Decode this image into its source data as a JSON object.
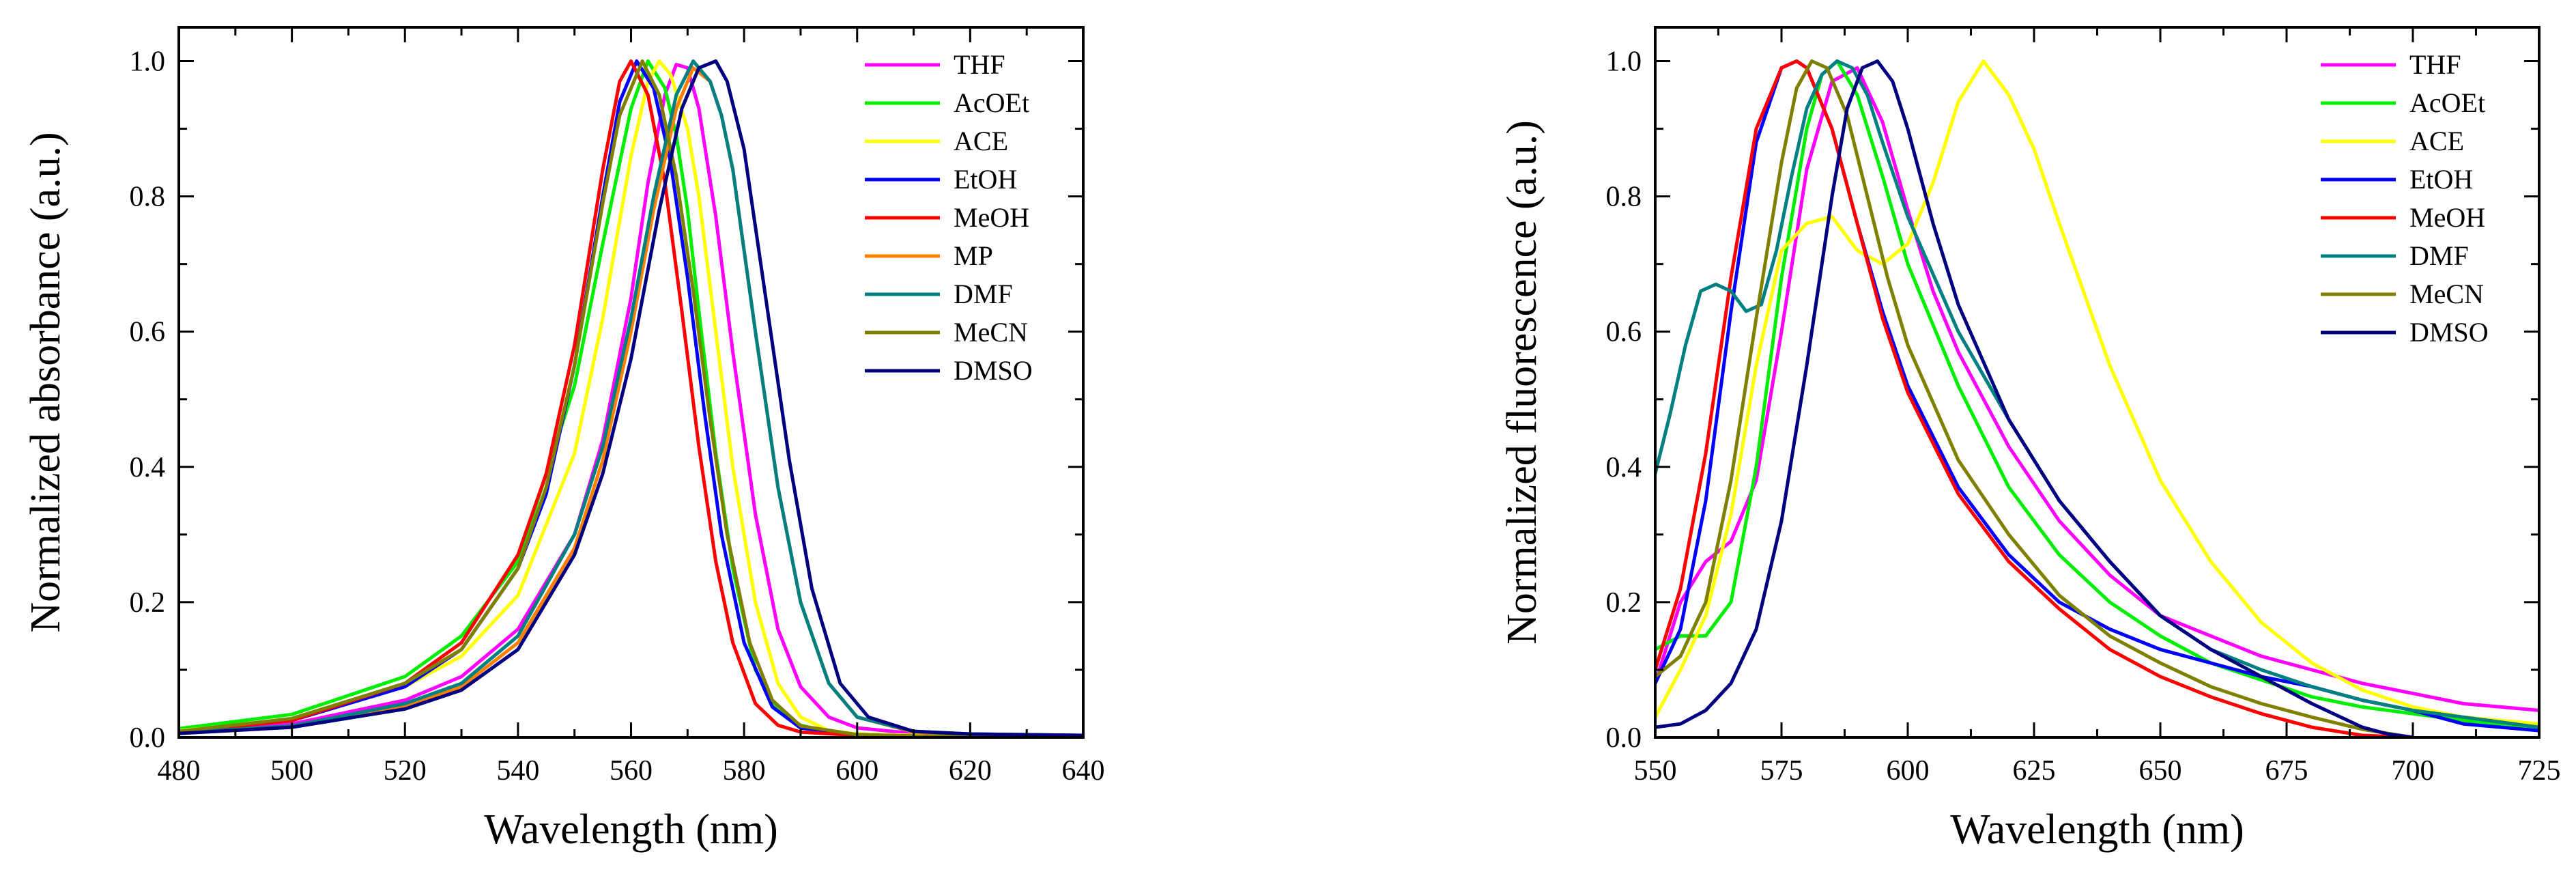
{
  "chart_data": [
    {
      "type": "line",
      "title": "",
      "xlabel": "Wavelength (nm)",
      "ylabel": "Normalized absorbance (a.u.)",
      "xlim": [
        480,
        640
      ],
      "ylim": [
        0,
        1.05
      ],
      "xticks": [
        480,
        500,
        520,
        540,
        560,
        580,
        600,
        620,
        640
      ],
      "yticks": [
        0.0,
        0.2,
        0.4,
        0.6,
        0.8,
        1.0
      ],
      "xtick_labels": [
        "480",
        "500",
        "520",
        "540",
        "560",
        "580",
        "600",
        "620",
        "640"
      ],
      "ytick_labels": [
        "0.0",
        "0.2",
        "0.4",
        "0.6",
        "0.8",
        "1.0"
      ],
      "grid": false,
      "legend_position": "top-right",
      "series": [
        {
          "name": "THF",
          "color": "#ff00ff",
          "x": [
            480,
            500,
            520,
            530,
            540,
            550,
            555,
            560,
            563,
            566,
            568,
            570,
            572,
            575,
            578,
            582,
            586,
            590,
            595,
            600,
            610,
            620,
            640
          ],
          "y": [
            0.007,
            0.02,
            0.055,
            0.09,
            0.16,
            0.3,
            0.44,
            0.65,
            0.82,
            0.95,
            0.995,
            0.99,
            0.93,
            0.77,
            0.57,
            0.33,
            0.16,
            0.075,
            0.03,
            0.014,
            0.006,
            0.004,
            0.003
          ]
        },
        {
          "name": "AcOEt",
          "color": "#00ee00",
          "x": [
            480,
            500,
            520,
            530,
            540,
            550,
            555,
            560,
            563,
            566,
            568,
            570,
            572,
            575,
            578,
            582,
            586,
            590,
            595,
            600,
            610,
            620,
            640
          ],
          "y": [
            0.013,
            0.034,
            0.09,
            0.15,
            0.26,
            0.52,
            0.73,
            0.93,
            1.0,
            0.96,
            0.89,
            0.78,
            0.63,
            0.42,
            0.25,
            0.1,
            0.04,
            0.018,
            0.008,
            0.005,
            0.003,
            0.002,
            0.002
          ]
        },
        {
          "name": "ACE",
          "color": "#ffff00",
          "x": [
            480,
            500,
            520,
            530,
            540,
            550,
            555,
            560,
            563,
            565,
            567,
            570,
            572,
            575,
            578,
            582,
            586,
            590,
            595,
            600,
            610,
            620,
            640
          ],
          "y": [
            0.01,
            0.025,
            0.075,
            0.12,
            0.21,
            0.42,
            0.62,
            0.86,
            0.97,
            1.0,
            0.98,
            0.9,
            0.8,
            0.6,
            0.4,
            0.2,
            0.08,
            0.03,
            0.01,
            0.005,
            0.003,
            0.002,
            0.002
          ]
        },
        {
          "name": "EtOH",
          "color": "#0000ff",
          "x": [
            480,
            500,
            520,
            530,
            540,
            545,
            550,
            555,
            558,
            561,
            564,
            567,
            570,
            573,
            576,
            580,
            585,
            590,
            600,
            610,
            620,
            640
          ],
          "y": [
            0.008,
            0.025,
            0.075,
            0.13,
            0.25,
            0.36,
            0.55,
            0.8,
            0.94,
            1.0,
            0.96,
            0.85,
            0.68,
            0.48,
            0.3,
            0.14,
            0.045,
            0.014,
            0.004,
            0.002,
            0.002,
            0.002
          ]
        },
        {
          "name": "MeOH",
          "color": "#ff0000",
          "x": [
            480,
            500,
            520,
            530,
            540,
            545,
            550,
            555,
            558,
            560,
            563,
            566,
            569,
            572,
            575,
            578,
            582,
            586,
            590,
            600,
            610,
            640
          ],
          "y": [
            0.008,
            0.025,
            0.08,
            0.14,
            0.27,
            0.39,
            0.58,
            0.84,
            0.97,
            1.0,
            0.95,
            0.82,
            0.63,
            0.43,
            0.26,
            0.14,
            0.05,
            0.018,
            0.008,
            0.003,
            0.002,
            0.002
          ]
        },
        {
          "name": "MP",
          "color": "#ff8000",
          "x": [
            480,
            500,
            520,
            530,
            540,
            550,
            555,
            560,
            564,
            568,
            571,
            574,
            576,
            578,
            582,
            586,
            590,
            595,
            600,
            610,
            620,
            640
          ],
          "y": [
            0.006,
            0.015,
            0.045,
            0.075,
            0.14,
            0.28,
            0.41,
            0.6,
            0.78,
            0.93,
            0.99,
            0.97,
            0.92,
            0.84,
            0.6,
            0.37,
            0.2,
            0.08,
            0.03,
            0.008,
            0.004,
            0.003
          ]
        },
        {
          "name": "DMF",
          "color": "#008080",
          "x": [
            480,
            500,
            520,
            530,
            540,
            550,
            555,
            560,
            564,
            568,
            571,
            574,
            576,
            578,
            582,
            586,
            590,
            595,
            600,
            610,
            620,
            640
          ],
          "y": [
            0.007,
            0.017,
            0.05,
            0.08,
            0.15,
            0.3,
            0.43,
            0.62,
            0.8,
            0.95,
            1.0,
            0.97,
            0.92,
            0.84,
            0.6,
            0.37,
            0.2,
            0.08,
            0.03,
            0.009,
            0.005,
            0.003
          ]
        },
        {
          "name": "MeCN",
          "color": "#808000",
          "x": [
            480,
            500,
            520,
            530,
            540,
            545,
            550,
            555,
            558,
            562,
            565,
            568,
            571,
            574,
            577,
            581,
            585,
            590,
            600,
            610,
            620,
            640
          ],
          "y": [
            0.009,
            0.028,
            0.08,
            0.13,
            0.25,
            0.37,
            0.55,
            0.79,
            0.92,
            1.0,
            0.95,
            0.83,
            0.66,
            0.47,
            0.3,
            0.14,
            0.055,
            0.017,
            0.004,
            0.002,
            0.002,
            0.002
          ]
        },
        {
          "name": "DMSO",
          "color": "#000080",
          "x": [
            480,
            500,
            520,
            530,
            540,
            550,
            555,
            560,
            565,
            569,
            572,
            575,
            577,
            580,
            584,
            588,
            592,
            597,
            602,
            610,
            620,
            640
          ],
          "y": [
            0.006,
            0.015,
            0.042,
            0.07,
            0.13,
            0.27,
            0.39,
            0.56,
            0.78,
            0.93,
            0.99,
            1.0,
            0.97,
            0.87,
            0.64,
            0.41,
            0.22,
            0.08,
            0.03,
            0.009,
            0.005,
            0.003
          ]
        }
      ]
    },
    {
      "type": "line",
      "title": "",
      "xlabel": "Wavelength (nm)",
      "ylabel": "Normalized fluorescence (a.u.)",
      "xlim": [
        550,
        725
      ],
      "ylim": [
        0,
        1.05
      ],
      "xticks": [
        550,
        575,
        600,
        625,
        650,
        675,
        700,
        725
      ],
      "yticks": [
        0.0,
        0.2,
        0.4,
        0.6,
        0.8,
        1.0
      ],
      "xtick_labels": [
        "550",
        "575",
        "600",
        "625",
        "650",
        "675",
        "700",
        "725"
      ],
      "ytick_labels": [
        "0.0",
        "0.2",
        "0.4",
        "0.6",
        "0.8",
        "1.0"
      ],
      "grid": false,
      "legend_position": "top-right",
      "series": [
        {
          "name": "THF",
          "color": "#ff00ff",
          "x": [
            550,
            555,
            560,
            565,
            570,
            575,
            580,
            585,
            590,
            595,
            600,
            605,
            610,
            620,
            630,
            640,
            650,
            660,
            670,
            680,
            690,
            700,
            710,
            725
          ],
          "y": [
            0.08,
            0.2,
            0.26,
            0.29,
            0.38,
            0.6,
            0.84,
            0.97,
            0.99,
            0.91,
            0.78,
            0.66,
            0.57,
            0.43,
            0.32,
            0.24,
            0.18,
            0.15,
            0.12,
            0.1,
            0.08,
            0.065,
            0.05,
            0.04
          ]
        },
        {
          "name": "AcOEt",
          "color": "#00ee00",
          "x": [
            550,
            555,
            560,
            565,
            570,
            575,
            580,
            583,
            586,
            590,
            595,
            600,
            610,
            620,
            630,
            640,
            650,
            660,
            670,
            680,
            690,
            700,
            710,
            725
          ],
          "y": [
            0.13,
            0.15,
            0.15,
            0.2,
            0.4,
            0.68,
            0.9,
            0.98,
            1.0,
            0.95,
            0.83,
            0.7,
            0.52,
            0.37,
            0.27,
            0.2,
            0.15,
            0.11,
            0.085,
            0.06,
            0.045,
            0.035,
            0.025,
            0.015
          ]
        },
        {
          "name": "ACE",
          "color": "#ffff00",
          "x": [
            550,
            555,
            560,
            565,
            570,
            575,
            580,
            585,
            590,
            595,
            600,
            605,
            610,
            615,
            620,
            625,
            630,
            640,
            650,
            660,
            670,
            680,
            690,
            700,
            710,
            725
          ],
          "y": [
            0.03,
            0.1,
            0.18,
            0.33,
            0.55,
            0.72,
            0.76,
            0.77,
            0.72,
            0.7,
            0.73,
            0.82,
            0.94,
            1.0,
            0.95,
            0.87,
            0.76,
            0.55,
            0.38,
            0.26,
            0.17,
            0.11,
            0.07,
            0.045,
            0.03,
            0.02
          ]
        },
        {
          "name": "EtOH",
          "color": "#0000ff",
          "x": [
            550,
            555,
            560,
            565,
            570,
            575,
            578,
            580,
            585,
            590,
            595,
            600,
            610,
            620,
            630,
            640,
            650,
            660,
            670,
            680,
            690,
            700,
            710,
            725
          ],
          "y": [
            0.08,
            0.16,
            0.35,
            0.63,
            0.88,
            0.99,
            1.0,
            0.99,
            0.9,
            0.76,
            0.63,
            0.52,
            0.37,
            0.27,
            0.2,
            0.16,
            0.13,
            0.11,
            0.09,
            0.075,
            0.055,
            0.04,
            0.02,
            0.01
          ]
        },
        {
          "name": "MeOH",
          "color": "#ff0000",
          "x": [
            550,
            555,
            560,
            565,
            570,
            575,
            578,
            580,
            585,
            590,
            595,
            600,
            610,
            620,
            630,
            640,
            650,
            660,
            670,
            680,
            690,
            700
          ],
          "y": [
            0.1,
            0.22,
            0.42,
            0.68,
            0.9,
            0.99,
            1.0,
            0.99,
            0.9,
            0.76,
            0.62,
            0.51,
            0.36,
            0.26,
            0.19,
            0.13,
            0.09,
            0.06,
            0.035,
            0.015,
            0.003,
            0.0
          ]
        },
        {
          "name": "DMF",
          "color": "#008080",
          "x": [
            550,
            553,
            556,
            559,
            562,
            565,
            568,
            571,
            574,
            577,
            580,
            583,
            586,
            589,
            592,
            595,
            600,
            610,
            620,
            630,
            640,
            650,
            660,
            670,
            680,
            690,
            700,
            710,
            725
          ],
          "y": [
            0.39,
            0.48,
            0.58,
            0.66,
            0.67,
            0.66,
            0.63,
            0.64,
            0.72,
            0.83,
            0.93,
            0.98,
            1.0,
            0.99,
            0.95,
            0.88,
            0.77,
            0.6,
            0.47,
            0.35,
            0.26,
            0.18,
            0.13,
            0.1,
            0.075,
            0.055,
            0.04,
            0.03,
            0.015
          ]
        },
        {
          "name": "MeCN",
          "color": "#808000",
          "x": [
            550,
            555,
            560,
            565,
            570,
            575,
            578,
            581,
            584,
            588,
            592,
            596,
            600,
            610,
            620,
            630,
            640,
            650,
            660,
            670,
            680,
            690,
            700
          ],
          "y": [
            0.09,
            0.12,
            0.2,
            0.38,
            0.62,
            0.85,
            0.96,
            1.0,
            0.99,
            0.92,
            0.8,
            0.68,
            0.58,
            0.41,
            0.3,
            0.21,
            0.15,
            0.11,
            0.075,
            0.05,
            0.03,
            0.012,
            0.0
          ]
        },
        {
          "name": "DMSO",
          "color": "#000080",
          "x": [
            550,
            555,
            560,
            565,
            570,
            575,
            580,
            585,
            588,
            591,
            594,
            597,
            600,
            605,
            610,
            620,
            630,
            640,
            650,
            660,
            670,
            680,
            690,
            695,
            700
          ],
          "y": [
            0.015,
            0.02,
            0.04,
            0.08,
            0.16,
            0.32,
            0.55,
            0.8,
            0.93,
            0.99,
            1.0,
            0.97,
            0.9,
            0.76,
            0.64,
            0.47,
            0.35,
            0.26,
            0.18,
            0.13,
            0.09,
            0.05,
            0.015,
            0.005,
            0.0
          ]
        }
      ]
    }
  ]
}
